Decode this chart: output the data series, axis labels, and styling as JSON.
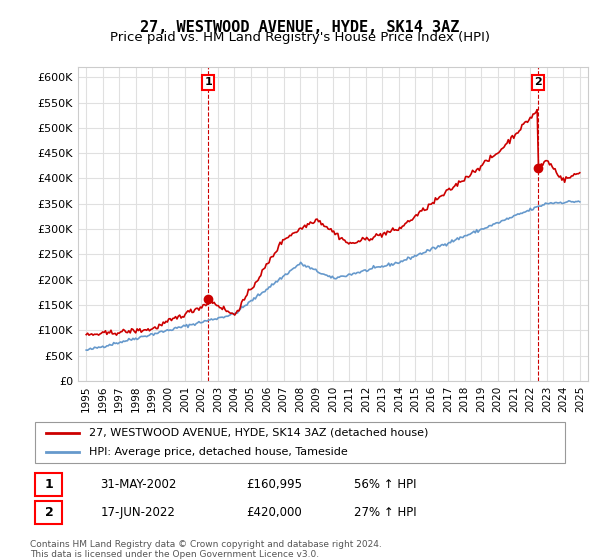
{
  "title": "27, WESTWOOD AVENUE, HYDE, SK14 3AZ",
  "subtitle": "Price paid vs. HM Land Registry's House Price Index (HPI)",
  "ylabel": "",
  "xlabel": "",
  "ylim": [
    0,
    620000
  ],
  "yticks": [
    0,
    50000,
    100000,
    150000,
    200000,
    250000,
    300000,
    350000,
    400000,
    450000,
    500000,
    550000,
    600000
  ],
  "ytick_labels": [
    "£0",
    "£50K",
    "£100K",
    "£150K",
    "£200K",
    "£250K",
    "£300K",
    "£350K",
    "£400K",
    "£450K",
    "£500K",
    "£550K",
    "£600K"
  ],
  "xlim_start": 1994.5,
  "xlim_end": 2025.5,
  "background_color": "#ffffff",
  "grid_color": "#e0e0e0",
  "red_line_color": "#cc0000",
  "blue_line_color": "#6699cc",
  "point1_x": 2002.415,
  "point1_y": 160995,
  "point2_x": 2022.46,
  "point2_y": 420000,
  "vline1_x": 2002.415,
  "vline2_x": 2022.46,
  "vline_color": "#cc0000",
  "annotation1_label": "1",
  "annotation2_label": "2",
  "legend_line1": "27, WESTWOOD AVENUE, HYDE, SK14 3AZ (detached house)",
  "legend_line2": "HPI: Average price, detached house, Tameside",
  "table_row1": [
    "1",
    "31-MAY-2002",
    "£160,995",
    "56% ↑ HPI"
  ],
  "table_row2": [
    "2",
    "17-JUN-2022",
    "£420,000",
    "27% ↑ HPI"
  ],
  "footnote1": "Contains HM Land Registry data © Crown copyright and database right 2024.",
  "footnote2": "This data is licensed under the Open Government Licence v3.0.",
  "title_fontsize": 11,
  "subtitle_fontsize": 9.5
}
